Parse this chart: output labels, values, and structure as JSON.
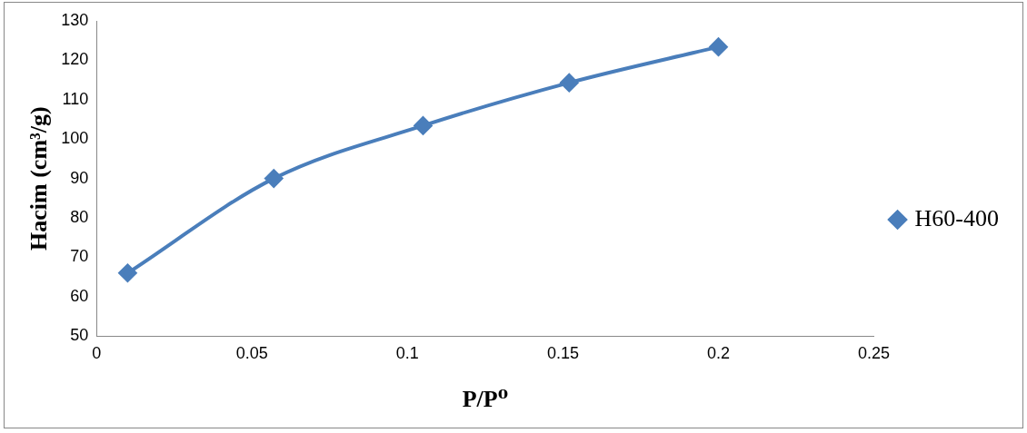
{
  "chart_data": {
    "type": "line",
    "xlabel": "P/P⁰",
    "ylabel": "Hacim (cm³/g)",
    "x": [
      0.01,
      0.057,
      0.105,
      0.152,
      0.2
    ],
    "series": [
      {
        "name": "H60-400",
        "color": "#4a7ebb",
        "values": [
          66,
          90,
          103.4,
          114.3,
          123.4
        ]
      }
    ],
    "xlim": [
      0,
      0.25
    ],
    "xticks": [
      0,
      0.05,
      0.1,
      0.15,
      0.2,
      0.25
    ],
    "ylim": [
      50,
      130
    ],
    "yticks": [
      50,
      60,
      70,
      80,
      90,
      100,
      110,
      120,
      130
    ],
    "grid": false,
    "legend": "right",
    "marker": "diamond",
    "line_style": "solid"
  }
}
